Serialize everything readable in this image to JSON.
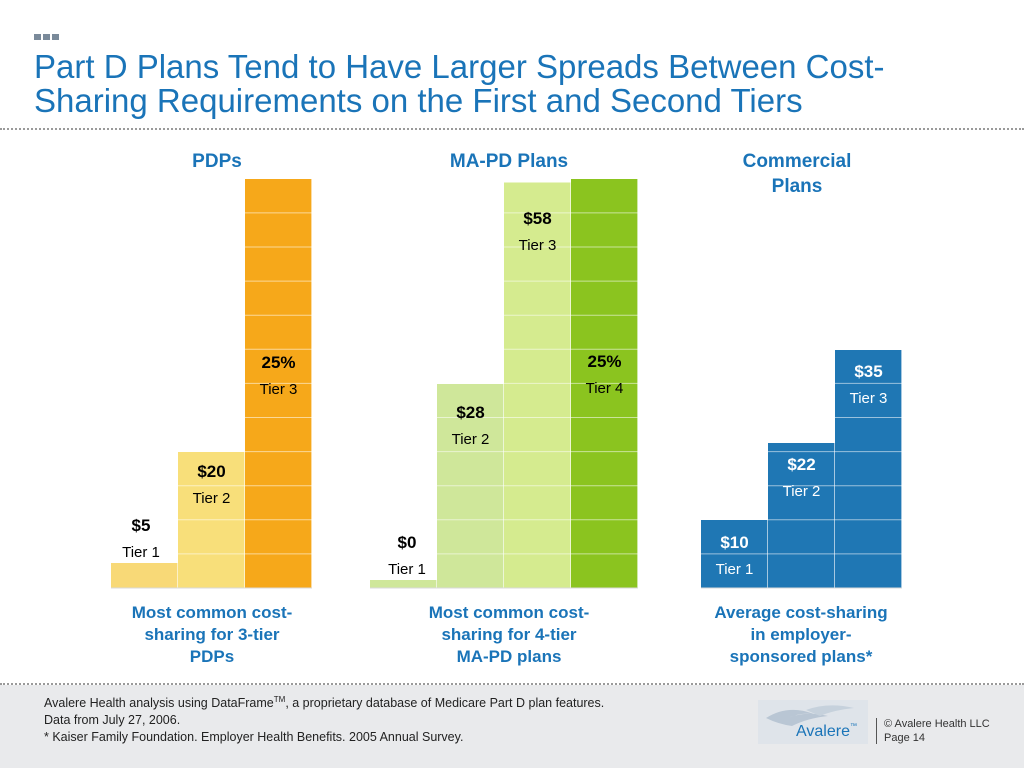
{
  "slide": {
    "title": "Part D Plans Tend to Have Larger Spreads Between Cost-Sharing Requirements on the First and Second Tiers",
    "footnote_line1": "Avalere Health analysis using DataFrame",
    "footnote_tm": "TM",
    "footnote_line1_rest": ", a proprietary database of Medicare Part D plan features.",
    "footnote_line2": "Data from July 27, 2006.",
    "footnote_line3": "*  Kaiser Family Foundation. Employer Health Benefits. 2005 Annual Survey.",
    "logo_text": "Avalere",
    "logo_tm": "™",
    "copyright": "© Avalere Health LLC",
    "page": "Page 14"
  },
  "colors": {
    "title_blue": "#1a74b8",
    "pdp_tier1": "#f8d977",
    "pdp_tier2": "#f8df7a",
    "pdp_tier3": "#f6a81a",
    "ma_tier1": "#cfe79a",
    "ma_tier2": "#cfe79a",
    "ma_tier3": "#d5eb8f",
    "ma_tier4": "#8bc41f",
    "comm": "#1f77b4"
  },
  "chart_data": [
    {
      "type": "bar",
      "title": "PDPs",
      "caption": [
        "Most common cost-",
        "sharing for 3-tier",
        "PDPs"
      ],
      "bars": [
        {
          "value": 5,
          "value_label": "$5",
          "tier": "Tier 1"
        },
        {
          "value": 20,
          "value_label": "$20",
          "tier": "Tier 2"
        },
        {
          "value": 25,
          "value_label": "25%",
          "tier": "Tier 3",
          "percent": true
        }
      ]
    },
    {
      "type": "bar",
      "title": "MA-PD Plans",
      "caption": [
        "Most common cost-",
        "sharing for 4-tier",
        "MA-PD plans"
      ],
      "bars": [
        {
          "value": 0,
          "value_label": "$0",
          "tier": "Tier 1"
        },
        {
          "value": 28,
          "value_label": "$28",
          "tier": "Tier 2"
        },
        {
          "value": 58,
          "value_label": "$58",
          "tier": "Tier 3"
        },
        {
          "value": 25,
          "value_label": "25%",
          "tier": "Tier 4",
          "percent": true
        }
      ]
    },
    {
      "type": "bar",
      "title": [
        "Commercial",
        "Plans"
      ],
      "caption": [
        "Average cost-sharing",
        "in employer-",
        "sponsored plans*"
      ],
      "bars": [
        {
          "value": 10,
          "value_label": "$10",
          "tier": "Tier 1"
        },
        {
          "value": 22,
          "value_label": "$22",
          "tier": "Tier 2"
        },
        {
          "value": 35,
          "value_label": "$35",
          "tier": "Tier 3"
        }
      ]
    }
  ]
}
